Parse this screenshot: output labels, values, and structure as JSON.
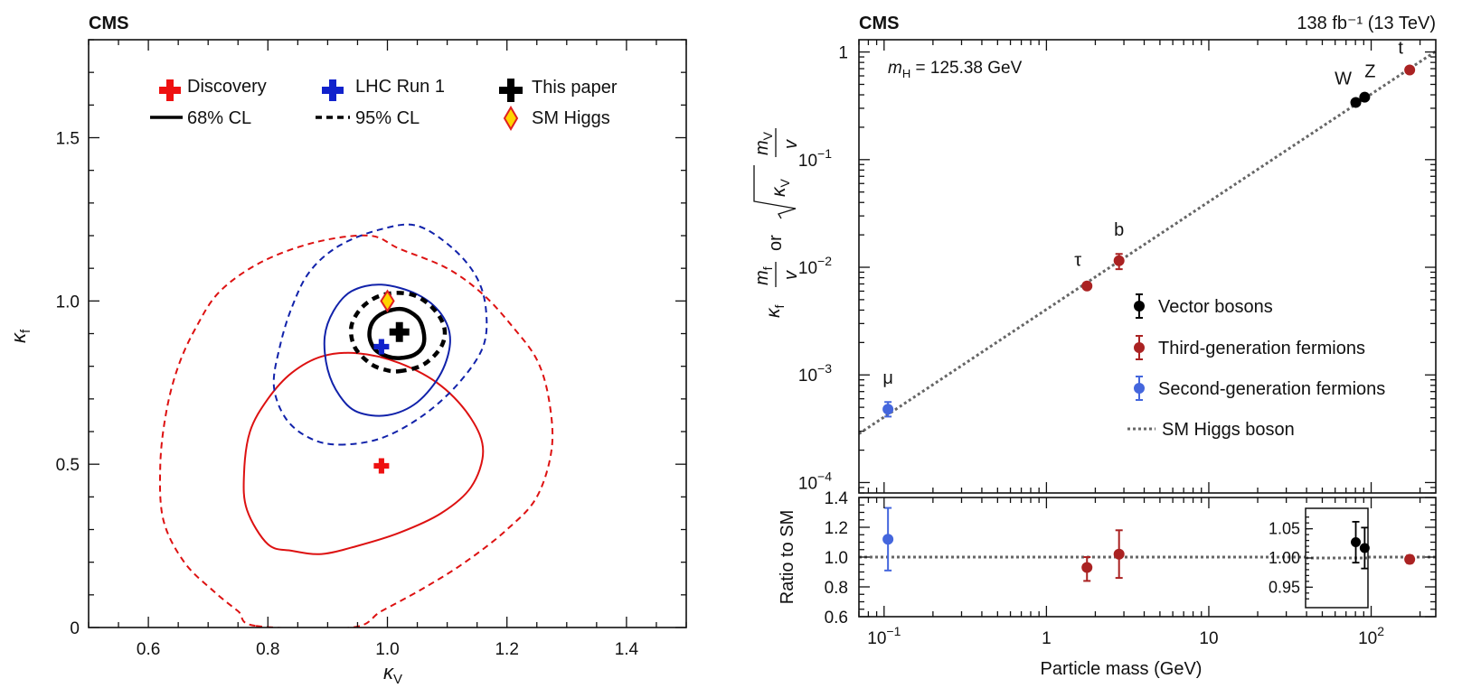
{
  "chart_data": [
    {
      "type": "contour",
      "experiment_label": "CMS",
      "xlabel": "κ",
      "xlabel_sub": "V",
      "ylabel": "κ",
      "ylabel_sub": "f",
      "xlim": [
        0.5,
        1.5
      ],
      "ylim": [
        0,
        1.8
      ],
      "xticks": [
        0.6,
        0.8,
        1.0,
        1.2,
        1.4
      ],
      "xtick_labels": [
        "0.6",
        "0.8",
        "1.0",
        "1.2",
        "1.4"
      ],
      "yticks": [
        0,
        0.5,
        1.0,
        1.5
      ],
      "ytick_labels": [
        "0",
        "0.5",
        "1.0",
        "1.5"
      ],
      "legend": {
        "placement": "top",
        "items": [
          {
            "label": "Discovery",
            "marker": "cross",
            "color": "#ee1111"
          },
          {
            "label": "LHC Run 1",
            "marker": "cross",
            "color": "#1122cc"
          },
          {
            "label": "This paper",
            "marker": "cross",
            "color": "#000000"
          },
          {
            "label": "68% CL",
            "marker": "solid-line",
            "color": "#000000"
          },
          {
            "label": "95% CL",
            "marker": "dashed-line",
            "color": "#000000"
          },
          {
            "label": "SM Higgs",
            "marker": "diamond",
            "color": "#ffd400"
          }
        ]
      },
      "points": [
        {
          "name": "Discovery",
          "x": 0.99,
          "y": 0.495,
          "color": "#ee1111"
        },
        {
          "name": "LHC Run 1",
          "x": 0.99,
          "y": 0.86,
          "color": "#1122cc"
        },
        {
          "name": "This paper",
          "x": 1.02,
          "y": 0.905,
          "color": "#000000"
        },
        {
          "name": "SM Higgs",
          "x": 1.0,
          "y": 1.0,
          "color": "#ffd400"
        }
      ],
      "contours": [
        {
          "name": "Discovery",
          "cl": "68%",
          "style": "solid",
          "color": "#dd1111",
          "points": [
            [
              0.8,
              0.255
            ],
            [
              0.84,
              0.235
            ],
            [
              0.89,
              0.225
            ],
            [
              0.95,
              0.25
            ],
            [
              1.02,
              0.29
            ],
            [
              1.09,
              0.35
            ],
            [
              1.14,
              0.43
            ],
            [
              1.16,
              0.54
            ],
            [
              1.14,
              0.64
            ],
            [
              1.09,
              0.74
            ],
            [
              1.02,
              0.81
            ],
            [
              0.95,
              0.84
            ],
            [
              0.89,
              0.83
            ],
            [
              0.84,
              0.78
            ],
            [
              0.8,
              0.7
            ],
            [
              0.77,
              0.6
            ],
            [
              0.76,
              0.47
            ],
            [
              0.765,
              0.36
            ]
          ]
        },
        {
          "name": "Discovery",
          "cl": "95%",
          "style": "dashed",
          "color": "#dd1111",
          "points": [
            [
              0.78,
              0.005
            ],
            [
              0.94,
              0.0
            ],
            [
              0.99,
              0.05
            ],
            [
              1.06,
              0.12
            ],
            [
              1.13,
              0.2
            ],
            [
              1.2,
              0.3
            ],
            [
              1.25,
              0.4
            ],
            [
              1.275,
              0.55
            ],
            [
              1.27,
              0.7
            ],
            [
              1.25,
              0.82
            ],
            [
              1.21,
              0.92
            ],
            [
              1.16,
              1.02
            ],
            [
              1.1,
              1.1
            ],
            [
              1.02,
              1.16
            ],
            [
              0.97,
              1.2
            ],
            [
              0.88,
              1.18
            ],
            [
              0.79,
              1.12
            ],
            [
              0.72,
              1.03
            ],
            [
              0.68,
              0.92
            ],
            [
              0.65,
              0.8
            ],
            [
              0.63,
              0.66
            ],
            [
              0.62,
              0.5
            ],
            [
              0.625,
              0.33
            ],
            [
              0.66,
              0.2
            ],
            [
              0.71,
              0.11
            ],
            [
              0.75,
              0.05
            ]
          ]
        },
        {
          "name": "LHC Run 1",
          "cl": "68%",
          "style": "solid",
          "color": "#1122aa",
          "points": [
            [
              0.95,
              0.66
            ],
            [
              1.0,
              0.65
            ],
            [
              1.05,
              0.69
            ],
            [
              1.09,
              0.78
            ],
            [
              1.105,
              0.88
            ],
            [
              1.09,
              0.96
            ],
            [
              1.05,
              1.02
            ],
            [
              0.99,
              1.05
            ],
            [
              0.94,
              1.03
            ],
            [
              0.91,
              0.97
            ],
            [
              0.895,
              0.89
            ],
            [
              0.9,
              0.79
            ],
            [
              0.92,
              0.71
            ]
          ]
        },
        {
          "name": "LHC Run 1",
          "cl": "95%",
          "style": "dashed",
          "color": "#1122aa",
          "points": [
            [
              0.92,
              0.56
            ],
            [
              0.99,
              0.58
            ],
            [
              1.06,
              0.65
            ],
            [
              1.12,
              0.75
            ],
            [
              1.16,
              0.86
            ],
            [
              1.165,
              0.97
            ],
            [
              1.15,
              1.07
            ],
            [
              1.11,
              1.16
            ],
            [
              1.05,
              1.23
            ],
            [
              0.99,
              1.22
            ],
            [
              0.92,
              1.17
            ],
            [
              0.87,
              1.09
            ],
            [
              0.84,
              0.98
            ],
            [
              0.82,
              0.86
            ],
            [
              0.81,
              0.74
            ],
            [
              0.83,
              0.64
            ],
            [
              0.87,
              0.58
            ]
          ]
        },
        {
          "name": "This paper",
          "cl": "68%",
          "style": "solid",
          "color": "#000000",
          "points": [
            [
              1.02,
              0.825
            ],
            [
              1.045,
              0.835
            ],
            [
              1.06,
              0.865
            ],
            [
              1.06,
              0.91
            ],
            [
              1.05,
              0.95
            ],
            [
              1.025,
              0.975
            ],
            [
              0.995,
              0.965
            ],
            [
              0.975,
              0.935
            ],
            [
              0.97,
              0.89
            ],
            [
              0.98,
              0.85
            ],
            [
              1.0,
              0.83
            ]
          ]
        },
        {
          "name": "This paper",
          "cl": "95%",
          "style": "dashed",
          "color": "#000000",
          "points": [
            [
              1.02,
              0.785
            ],
            [
              1.06,
              0.805
            ],
            [
              1.09,
              0.86
            ],
            [
              1.095,
              0.92
            ],
            [
              1.075,
              0.98
            ],
            [
              1.04,
              1.02
            ],
            [
              0.995,
              1.02
            ],
            [
              0.96,
              0.985
            ],
            [
              0.94,
              0.925
            ],
            [
              0.945,
              0.86
            ],
            [
              0.97,
              0.81
            ],
            [
              0.995,
              0.79
            ]
          ]
        }
      ]
    },
    {
      "type": "scatter",
      "experiment_label": "CMS",
      "luminosity_label": "138 fb⁻¹ (13 TeV)",
      "annotation": "m",
      "annotation_sub": "H",
      "annotation_value": " = 125.38 GeV",
      "xlabel": "Particle mass (GeV)",
      "xscale": "log",
      "yscale": "log",
      "xlim": [
        0.07,
        250
      ],
      "ylim": [
        8e-05,
        1.3
      ],
      "xticks": [
        0.1,
        1,
        10,
        100
      ],
      "yticks": [
        0.0001,
        0.001,
        0.01,
        0.1,
        1
      ],
      "ylabel_parts": {
        "kappa": "κ",
        "f": "f",
        "V": "V",
        "m": "m",
        "v": "v",
        "or": "or"
      },
      "legend": {
        "placement": "lower-right",
        "items": [
          {
            "label": "Vector bosons",
            "color": "#000000"
          },
          {
            "label": "Third-generation fermions",
            "color": "#aa2222"
          },
          {
            "label": "Second-generation fermions",
            "color": "#4466dd"
          },
          {
            "label": "SM Higgs boson",
            "color": "#666666",
            "style": "dotted"
          }
        ]
      },
      "sm_line": {
        "name": "SM Higgs boson",
        "slope_per_gev": 0.00406
      },
      "points": [
        {
          "label": "μ",
          "x": 0.1057,
          "y": 0.00048,
          "yerr": [
            0.00041,
            0.00056
          ],
          "color": "#4466dd"
        },
        {
          "label": "τ",
          "x": 1.777,
          "y": 0.0067,
          "yerr": [
            0.0063,
            0.0071
          ],
          "color": "#aa2222"
        },
        {
          "label": "b",
          "x": 2.8,
          "y": 0.0115,
          "yerr": [
            0.0096,
            0.0133
          ],
          "color": "#aa2222"
        },
        {
          "label": "W",
          "x": 80.4,
          "y": 0.34,
          "yerr": [
            0.33,
            0.35
          ],
          "color": "#000000"
        },
        {
          "label": "Z",
          "x": 91.2,
          "y": 0.38,
          "yerr": [
            0.37,
            0.39
          ],
          "color": "#000000"
        },
        {
          "label": "t",
          "x": 172.7,
          "y": 0.68,
          "yerr": [
            0.66,
            0.7
          ],
          "color": "#aa2222"
        }
      ]
    },
    {
      "type": "scatter",
      "ylabel": "Ratio to SM",
      "xlabel": "Particle mass (GeV)",
      "xscale": "log",
      "xlim": [
        0.07,
        250
      ],
      "ylim": [
        0.6,
        1.4
      ],
      "yticks": [
        0.6,
        0.8,
        1.0,
        1.2,
        1.4
      ],
      "ytick_labels": [
        "0.6",
        "0.8",
        "1.0",
        "1.2",
        "1.4"
      ],
      "xtick_labels": [
        "10",
        "1",
        "10",
        "10"
      ],
      "xtick_exponents": [
        "−1",
        "",
        "",
        "2"
      ],
      "reference_line": 1.0,
      "points": [
        {
          "x": 0.1057,
          "y": 1.12,
          "yerr": [
            0.91,
            1.33
          ],
          "color": "#4466dd"
        },
        {
          "x": 1.777,
          "y": 0.93,
          "yerr": [
            0.84,
            1.0
          ],
          "color": "#aa2222"
        },
        {
          "x": 2.8,
          "y": 1.02,
          "yerr": [
            0.86,
            1.18
          ],
          "color": "#aa2222"
        },
        {
          "x": 172.7,
          "y": 0.985,
          "yerr": [
            0.96,
            1.01
          ],
          "color": "#aa2222"
        }
      ],
      "inset": {
        "ylim": [
          0.915,
          1.085
        ],
        "yticks": [
          0.95,
          1.0,
          1.05
        ],
        "ytick_labels": [
          "0.95",
          "1.00",
          "1.05"
        ],
        "reference_line": 1.0,
        "points": [
          {
            "label": "W",
            "x": 80.4,
            "y": 1.027,
            "yerr": [
              0.992,
              1.062
            ],
            "color": "#000000"
          },
          {
            "label": "Z",
            "x": 91.2,
            "y": 1.017,
            "yerr": [
              0.982,
              1.052
            ],
            "color": "#000000"
          }
        ]
      }
    }
  ]
}
